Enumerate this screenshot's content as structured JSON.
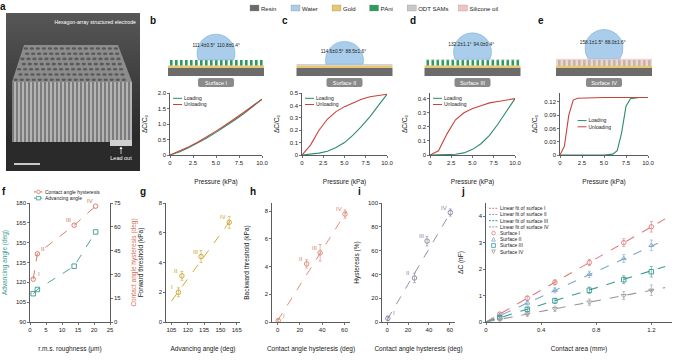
{
  "materials_legend": [
    {
      "label": "Resin",
      "color": "#6b6b6b"
    },
    {
      "label": "Water",
      "color": "#a9cdea"
    },
    {
      "label": "Gold",
      "color": "#e8c770"
    },
    {
      "label": "PAni",
      "color": "#2e9a5e"
    },
    {
      "label": "ODT SAMs",
      "color": "#c8c8c8"
    },
    {
      "label": "Silicone oil",
      "color": "#f2c2c2"
    }
  ],
  "panel_a": {
    "label": "a",
    "title": "Hexagon-array structured electrode",
    "lead_label": "Lead out"
  },
  "schematics": [
    {
      "panel": "b",
      "surface": "Surface I",
      "angle_values": [
        111.4,
        110.8
      ],
      "angle_labels": [
        "111.4±0.5°",
        "110.8±0.4°"
      ],
      "layers": [
        "Resin",
        "Gold",
        "PAni"
      ]
    },
    {
      "panel": "c",
      "surface": "Surface II",
      "angle_values": [
        114.6,
        88.5
      ],
      "angle_labels": [
        "114.6±0.5°",
        "88.5±1.6°"
      ],
      "layers": [
        "Resin",
        "Gold",
        "ODT SAMs"
      ]
    },
    {
      "panel": "d",
      "surface": "Surface III",
      "angle_values": [
        132.2,
        94.0
      ],
      "angle_labels": [
        "132.2±1.1°",
        "94.0±0.4°"
      ],
      "layers": [
        "Resin",
        "Gold",
        "PAni",
        "ODT SAMs"
      ]
    },
    {
      "panel": "e",
      "surface": "Surface IV",
      "angle_values": [
        158.1,
        88.0
      ],
      "angle_labels": [
        "158.1±1.5°",
        "88.0±1.6°"
      ],
      "layers": [
        "Resin",
        "Gold",
        "PAni",
        "Silicone oil"
      ]
    }
  ],
  "chart_data": [
    {
      "panel": "b",
      "type": "line",
      "xlabel": "Pressure (kPa)",
      "ylabel": "ΔC/C₀",
      "xlim": [
        0,
        10
      ],
      "ylim": [
        0,
        2
      ],
      "xticks": [
        0,
        2.5,
        {
          "value": 5,
          "label": "5.0"
        },
        7.5,
        {
          "value": 10,
          "label": "10.0"
        }
      ],
      "yticks": [
        0,
        0.5,
        {
          "value": 1,
          "label": "1.0"
        },
        1.5,
        {
          "value": 2,
          "label": "2.0"
        }
      ],
      "legend": "upper left",
      "series": [
        {
          "name": "Loading",
          "color": "#2a8c6a",
          "x": [
            0,
            1,
            2,
            3,
            4,
            5,
            6,
            7,
            8,
            9,
            10
          ],
          "values": [
            0,
            0.1,
            0.23,
            0.38,
            0.55,
            0.73,
            0.92,
            1.12,
            1.33,
            1.56,
            1.8
          ]
        },
        {
          "name": "Unloading",
          "color": "#c8423a",
          "x": [
            0,
            1,
            2,
            3,
            4,
            5,
            6,
            7,
            8,
            9,
            10
          ],
          "values": [
            0,
            0.12,
            0.26,
            0.41,
            0.58,
            0.77,
            0.96,
            1.16,
            1.37,
            1.59,
            1.8
          ]
        }
      ]
    },
    {
      "panel": "c",
      "type": "line",
      "xlabel": "Pressure (kPa)",
      "ylabel": "ΔC/C₀",
      "xlim": [
        0,
        10
      ],
      "ylim": [
        0,
        0.5
      ],
      "xticks": [
        0,
        2.5,
        {
          "value": 5,
          "label": "5.0"
        },
        7.5,
        {
          "value": 10,
          "label": "10.0"
        }
      ],
      "yticks": [
        0,
        0.1,
        0.2,
        0.3,
        0.4,
        0.5
      ],
      "legend": "upper left",
      "series": [
        {
          "name": "Loading",
          "color": "#2a8c6a",
          "x": [
            0,
            1,
            2,
            3,
            4,
            5,
            6,
            7,
            8,
            9,
            10
          ],
          "values": [
            0,
            0.005,
            0.015,
            0.03,
            0.06,
            0.1,
            0.16,
            0.23,
            0.31,
            0.4,
            0.49
          ]
        },
        {
          "name": "Unloading",
          "color": "#c8423a",
          "x": [
            0,
            1,
            2,
            3,
            4,
            5,
            6,
            7,
            8,
            9,
            10
          ],
          "values": [
            0,
            0.08,
            0.2,
            0.29,
            0.35,
            0.39,
            0.42,
            0.45,
            0.47,
            0.48,
            0.49
          ]
        }
      ]
    },
    {
      "panel": "d",
      "type": "line",
      "xlabel": "Pressure (kPa)",
      "ylabel": "ΔC/C₀",
      "xlim": [
        0,
        10
      ],
      "ylim": [
        0,
        0.44
      ],
      "xticks": [
        0,
        2.5,
        {
          "value": 5,
          "label": "5.0"
        },
        7.5,
        {
          "value": 10,
          "label": "10.0"
        }
      ],
      "yticks": [
        0,
        0.1,
        0.2,
        0.3,
        0.4
      ],
      "legend": "upper left",
      "series": [
        {
          "name": "Loading",
          "color": "#2a8c6a",
          "x": [
            0,
            1,
            2,
            3,
            4,
            5,
            6,
            7,
            8,
            9,
            10
          ],
          "values": [
            0,
            0,
            0,
            0.005,
            0.015,
            0.04,
            0.08,
            0.14,
            0.22,
            0.31,
            0.4
          ]
        },
        {
          "name": "Unloading",
          "color": "#c8423a",
          "x": [
            0,
            1,
            2,
            3,
            4,
            5,
            6,
            7,
            8,
            9,
            10
          ],
          "values": [
            0,
            0.03,
            0.15,
            0.25,
            0.3,
            0.33,
            0.35,
            0.37,
            0.38,
            0.39,
            0.4
          ]
        }
      ]
    },
    {
      "panel": "e",
      "type": "line",
      "xlabel": "Pressure (kPa)",
      "ylabel": "ΔC/C₀",
      "xlim": [
        0,
        10
      ],
      "ylim": [
        0,
        0.14
      ],
      "xticks": [
        0,
        2.5,
        {
          "value": 5,
          "label": "5.0"
        },
        7.5,
        {
          "value": 10,
          "label": "10.0"
        }
      ],
      "yticks": [
        0,
        0.03,
        0.06,
        0.09,
        0.12
      ],
      "legend": "center",
      "series": [
        {
          "name": "Loading",
          "color": "#2a8c6a",
          "x": [
            0,
            1,
            2,
            3,
            4,
            5,
            6,
            6.5,
            7,
            7.5,
            8,
            9,
            10
          ],
          "values": [
            0,
            0,
            0,
            0,
            0,
            0,
            0.002,
            0.01,
            0.05,
            0.11,
            0.127,
            0.13,
            0.13
          ]
        },
        {
          "name": "Unloading",
          "color": "#c8423a",
          "x": [
            0,
            0.5,
            1,
            1.5,
            2,
            3,
            4,
            5,
            6,
            7,
            8,
            9,
            10
          ],
          "values": [
            0,
            0.02,
            0.09,
            0.124,
            0.128,
            0.129,
            0.13,
            0.13,
            0.13,
            0.13,
            0.13,
            0.13,
            0.13
          ]
        }
      ]
    },
    {
      "panel": "f",
      "type": "scatter",
      "xlabel": "r.m.s. roughness (μm)",
      "ylabel": "Advancing angle (deg)",
      "y2label": "Contact angle hysteresis (deg)",
      "xlim": [
        0,
        25
      ],
      "ylim": [
        90,
        180
      ],
      "y2lim": [
        0,
        75
      ],
      "xticks": [
        0,
        5,
        10,
        15,
        20,
        25
      ],
      "yticks": [
        90,
        105,
        120,
        135,
        150,
        165,
        180
      ],
      "y2ticks": [
        0,
        15,
        30,
        45,
        60,
        75
      ],
      "legend": "top",
      "point_labels": [
        "I",
        "II",
        "III",
        "IV"
      ],
      "series": [
        {
          "name": "Contact angle hysteresis",
          "color": "#d0705a",
          "marker": "circle-open",
          "line_style": "dashed",
          "axis": "y2",
          "x": [
            1.0,
            2.3,
            13.8,
            20.5
          ],
          "values": [
            27,
            43,
            61,
            73
          ]
        },
        {
          "name": "Advancing angle",
          "color": "#3a9a94",
          "marker": "square-open",
          "line_style": "dashed",
          "x": [
            1.0,
            2.3,
            13.8,
            20.5
          ],
          "values": [
            111.4,
            114.6,
            132.2,
            158.1
          ]
        }
      ]
    },
    {
      "panel": "g",
      "type": "scatter",
      "xlabel": "Advancing angle (deg)",
      "ylabel": "Forward threshold (kPa)",
      "xlim": [
        100,
        168
      ],
      "ylim": [
        0,
        8
      ],
      "xticks": [
        105,
        120,
        135,
        150,
        165
      ],
      "yticks": [
        0,
        2,
        4,
        6,
        8
      ],
      "color": "#c9a227",
      "marker": "circle-open",
      "point_labels": [
        "I",
        "II",
        "III",
        "IV"
      ],
      "x": [
        111.4,
        114.6,
        132.2,
        158.1
      ],
      "values": [
        2.0,
        3.1,
        4.4,
        6.7
      ],
      "errors": [
        0.3,
        0.3,
        0.4,
        0.4
      ],
      "fit": {
        "x": [
          105,
          162
        ],
        "values": [
          1.4,
          7.1
        ]
      }
    },
    {
      "panel": "h",
      "type": "scatter",
      "xlabel": "Contact angle hysteresis (deg)",
      "ylabel": "Backward threshold (kPa)",
      "xlim": [
        -5,
        65
      ],
      "ylim": [
        0,
        8.6
      ],
      "xticks": [
        0,
        20,
        40,
        60
      ],
      "yticks": [
        0,
        2,
        4,
        6,
        8
      ],
      "color": "#d9826a",
      "marker": "circle-open",
      "point_labels": [
        "I",
        "II",
        "III",
        "IV"
      ],
      "x": [
        0.6,
        26.1,
        38.2,
        60.5
      ],
      "values": [
        0.1,
        4.2,
        5.0,
        7.8
      ],
      "errors": [
        0.1,
        0.3,
        0.6,
        0.3
      ],
      "fit": {
        "x": [
          0,
          62
        ],
        "values": [
          0.1,
          8.0
        ]
      }
    },
    {
      "panel": "i",
      "type": "scatter",
      "xlabel": "Contact angle hysteresis (deg)",
      "ylabel": "Hysteresis (%)",
      "xlim": [
        -5,
        65
      ],
      "ylim": [
        0,
        100
      ],
      "xticks": [
        0,
        20,
        40,
        60
      ],
      "yticks": [
        0,
        20,
        40,
        60,
        80,
        100
      ],
      "color": "#8a7f9e",
      "marker": "circle-open",
      "point_labels": [
        "I",
        "II",
        "III",
        "IV"
      ],
      "x": [
        0.6,
        26.1,
        38.2,
        60.5
      ],
      "values": [
        3,
        37,
        68,
        92
      ],
      "errors": [
        2,
        4,
        4,
        3
      ],
      "fit": {
        "x": [
          0,
          62
        ],
        "values": [
          2,
          94
        ]
      }
    },
    {
      "panel": "j",
      "type": "scatter",
      "xlabel": "Contact area (mm²)",
      "ylabel": "ΔC (nF)",
      "xlim": [
        0,
        1.35
      ],
      "ylim": [
        0,
        4.5
      ],
      "xticks": [
        0,
        0.4,
        0.8,
        1.2
      ],
      "yticks": [
        0,
        1,
        2,
        3,
        4
      ],
      "legend": "upper left",
      "series": [
        {
          "name": "Linear fit of surface I",
          "type": "line",
          "line_style": "dashed",
          "color": "#e07b7b",
          "x": [
            0,
            1.3
          ],
          "values": [
            0,
            3.9
          ]
        },
        {
          "name": "Linear fit of surface II",
          "type": "line",
          "line_style": "dashed",
          "color": "#7fa7c9",
          "x": [
            0,
            1.3
          ],
          "values": [
            0,
            3.1
          ]
        },
        {
          "name": "Linear fit of surface III",
          "type": "line",
          "line_style": "dashed",
          "color": "#3a9a94",
          "x": [
            0,
            1.3
          ],
          "values": [
            0,
            2.1
          ]
        },
        {
          "name": "Linear fit of surface IV",
          "type": "line",
          "line_style": "dashed",
          "color": "#999999",
          "x": [
            0,
            1.3
          ],
          "values": [
            0,
            1.3
          ]
        },
        {
          "name": "Surface I",
          "marker": "circle-open",
          "color": "#e07b7b",
          "x": [
            0.1,
            0.3,
            0.5,
            0.75,
            1.0,
            1.2
          ],
          "values": [
            0.3,
            0.9,
            1.5,
            2.25,
            3.0,
            3.6
          ],
          "errors": [
            0.05,
            0.08,
            0.1,
            0.12,
            0.15,
            0.2
          ]
        },
        {
          "name": "Surface II",
          "marker": "triangle-up-open",
          "color": "#7fa7c9",
          "x": [
            0.1,
            0.3,
            0.5,
            0.75,
            1.0,
            1.2
          ],
          "values": [
            0.25,
            0.72,
            1.2,
            1.8,
            2.4,
            2.9
          ],
          "errors": [
            0.05,
            0.08,
            0.1,
            0.12,
            0.15,
            0.2
          ]
        },
        {
          "name": "Surface III",
          "marker": "square-open",
          "color": "#3a9a94",
          "x": [
            0.1,
            0.3,
            0.5,
            0.75,
            1.0,
            1.2
          ],
          "values": [
            0.16,
            0.48,
            0.8,
            1.2,
            1.6,
            1.9
          ],
          "errors": [
            0.05,
            0.08,
            0.1,
            0.12,
            0.15,
            0.2
          ]
        },
        {
          "name": "Surface IV",
          "marker": "triangle-down-open",
          "color": "#999999",
          "x": [
            0.1,
            0.3,
            0.5,
            0.75,
            1.0,
            1.2
          ],
          "values": [
            0.1,
            0.3,
            0.5,
            0.75,
            1.0,
            1.2
          ],
          "errors": [
            0.05,
            0.08,
            0.1,
            0.12,
            0.15,
            0.2
          ]
        }
      ]
    }
  ]
}
